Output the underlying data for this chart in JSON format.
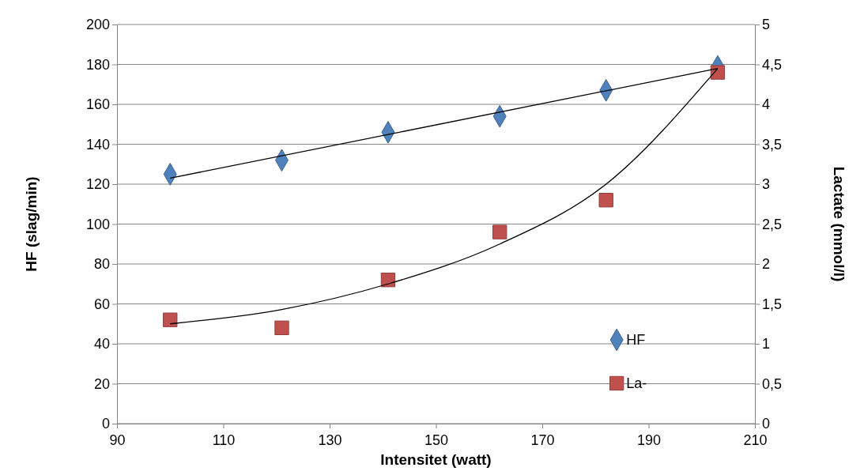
{
  "chart_data": {
    "type": "scatter",
    "xlabel": "Intensitet (watt)",
    "ylabel": "HF (slag/min)",
    "y2label": "Lactate (mmol/l)",
    "xlim": [
      90,
      210
    ],
    "xticks": [
      90,
      110,
      130,
      150,
      170,
      190,
      210
    ],
    "ylim": [
      0,
      200
    ],
    "yticks": [
      0,
      20,
      40,
      60,
      80,
      100,
      120,
      140,
      160,
      180,
      200
    ],
    "y2lim": [
      0,
      5
    ],
    "y2ticks": [
      0,
      {
        "value": 0.5,
        "label": "0,5"
      },
      1,
      {
        "value": 1.5,
        "label": "1,5"
      },
      2,
      {
        "value": 2.5,
        "label": "2,5"
      },
      3,
      {
        "value": 3.5,
        "label": "3,5"
      },
      4,
      {
        "value": 4.5,
        "label": "4,5"
      },
      5
    ],
    "grid": "y",
    "legend": "bottom right",
    "series": [
      {
        "type": "line",
        "color": "#000000",
        "marker": "none",
        "x": [
          100,
          203
        ],
        "values": [
          123,
          178
        ]
      },
      {
        "type": "line",
        "color": "#000000",
        "marker": "none",
        "axis": "y2",
        "x": [
          100,
          121,
          141,
          162,
          182,
          203
        ],
        "values": [
          1.25,
          1.43,
          1.75,
          2.25,
          3.0,
          4.45
        ]
      },
      {
        "name": "HF",
        "color": "#4f81bd",
        "marker": "diamond",
        "x": [
          100,
          121,
          141,
          162,
          182,
          203
        ],
        "values": [
          125,
          132,
          146,
          154,
          167,
          179
        ]
      },
      {
        "name": "La-",
        "color": "#c0504d",
        "marker": "square",
        "axis": "y2",
        "x": [
          100,
          121,
          141,
          162,
          182,
          203
        ],
        "values": [
          1.3,
          1.2,
          1.8,
          2.4,
          2.8,
          4.4
        ]
      }
    ]
  }
}
